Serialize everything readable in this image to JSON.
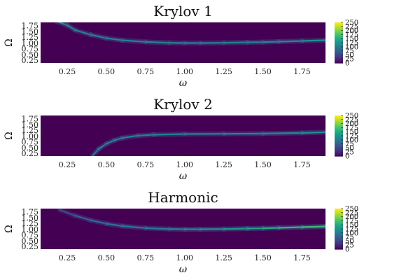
{
  "chart_data": [
    {
      "type": "heatmap",
      "title": "Krylov 1",
      "xlabel": "ω",
      "ylabel": "Ω",
      "xlim": [
        0.08,
        1.9
      ],
      "ylim": [
        0.15,
        1.9
      ],
      "xticks": [
        "0.25",
        "0.50",
        "0.75",
        "1.00",
        "1.25",
        "1.50",
        "1.75"
      ],
      "yticks": [
        "0.25",
        "0.50",
        "0.75",
        "1.00",
        "1.25",
        "1.50",
        "1.75"
      ],
      "colorbar": {
        "min": 0,
        "max": 250,
        "ticks": [
          "0",
          "25",
          "50",
          "75",
          "100",
          "125",
          "150",
          "175",
          "200",
          "225",
          "250"
        ],
        "colormap": "viridis"
      },
      "grid": false,
      "ridge": {
        "x": [
          0.18,
          0.25,
          0.3,
          0.4,
          0.5,
          0.6,
          0.75,
          0.9,
          1.0,
          1.1,
          1.25,
          1.4,
          1.5,
          1.6,
          1.75,
          1.9
        ],
        "y": [
          1.95,
          1.78,
          1.57,
          1.37,
          1.22,
          1.13,
          1.06,
          1.02,
          1.01,
          1.01,
          1.02,
          1.04,
          1.05,
          1.07,
          1.1,
          1.13
        ],
        "peak": [
          120,
          110,
          110,
          110,
          110,
          110,
          110,
          110,
          110,
          110,
          110,
          110,
          110,
          115,
          120,
          125
        ]
      }
    },
    {
      "type": "heatmap",
      "title": "Krylov 2",
      "xlabel": "ω",
      "ylabel": "Ω",
      "xlim": [
        0.08,
        1.9
      ],
      "ylim": [
        0.15,
        1.9
      ],
      "xticks": [
        "0.25",
        "0.50",
        "0.75",
        "1.00",
        "1.25",
        "1.50",
        "1.75"
      ],
      "yticks": [
        "0.25",
        "0.50",
        "0.75",
        "1.00",
        "1.25",
        "1.50",
        "1.75"
      ],
      "colorbar": {
        "min": 0,
        "max": 250,
        "ticks": [
          "0",
          "25",
          "50",
          "75",
          "100",
          "125",
          "150",
          "175",
          "200",
          "225",
          "250"
        ],
        "colormap": "viridis"
      },
      "grid": false,
      "ridge": {
        "x": [
          0.41,
          0.45,
          0.5,
          0.55,
          0.6,
          0.7,
          0.8,
          1.0,
          1.25,
          1.5,
          1.75,
          1.9
        ],
        "y": [
          0.15,
          0.45,
          0.68,
          0.83,
          0.93,
          1.03,
          1.07,
          1.1,
          1.11,
          1.12,
          1.15,
          1.18
        ],
        "peak": [
          100,
          105,
          110,
          110,
          110,
          110,
          110,
          110,
          110,
          115,
          120,
          125
        ]
      }
    },
    {
      "type": "heatmap",
      "title": "Harmonic",
      "xlabel": "ω",
      "ylabel": "Ω",
      "xlim": [
        0.08,
        1.9
      ],
      "ylim": [
        0.15,
        1.9
      ],
      "xticks": [
        "0.25",
        "0.50",
        "0.75",
        "1.00",
        "1.25",
        "1.50",
        "1.75"
      ],
      "yticks": [
        "0.25",
        "0.50",
        "0.75",
        "1.00",
        "1.25",
        "1.50",
        "1.75"
      ],
      "colorbar": {
        "min": 0,
        "max": 250,
        "ticks": [
          "0",
          "25",
          "50",
          "75",
          "100",
          "125",
          "150",
          "175",
          "200",
          "225",
          "250"
        ],
        "colormap": "viridis"
      },
      "grid": false,
      "ridge": {
        "x": [
          0.2,
          0.3,
          0.4,
          0.5,
          0.6,
          0.75,
          0.9,
          1.0,
          1.1,
          1.25,
          1.4,
          1.5,
          1.6,
          1.75,
          1.9
        ],
        "y": [
          1.85,
          1.6,
          1.4,
          1.25,
          1.15,
          1.06,
          1.02,
          1.01,
          1.01,
          1.02,
          1.04,
          1.05,
          1.07,
          1.1,
          1.13
        ],
        "peak": [
          50,
          70,
          85,
          95,
          100,
          105,
          110,
          115,
          120,
          130,
          140,
          150,
          160,
          170,
          175
        ]
      }
    }
  ]
}
